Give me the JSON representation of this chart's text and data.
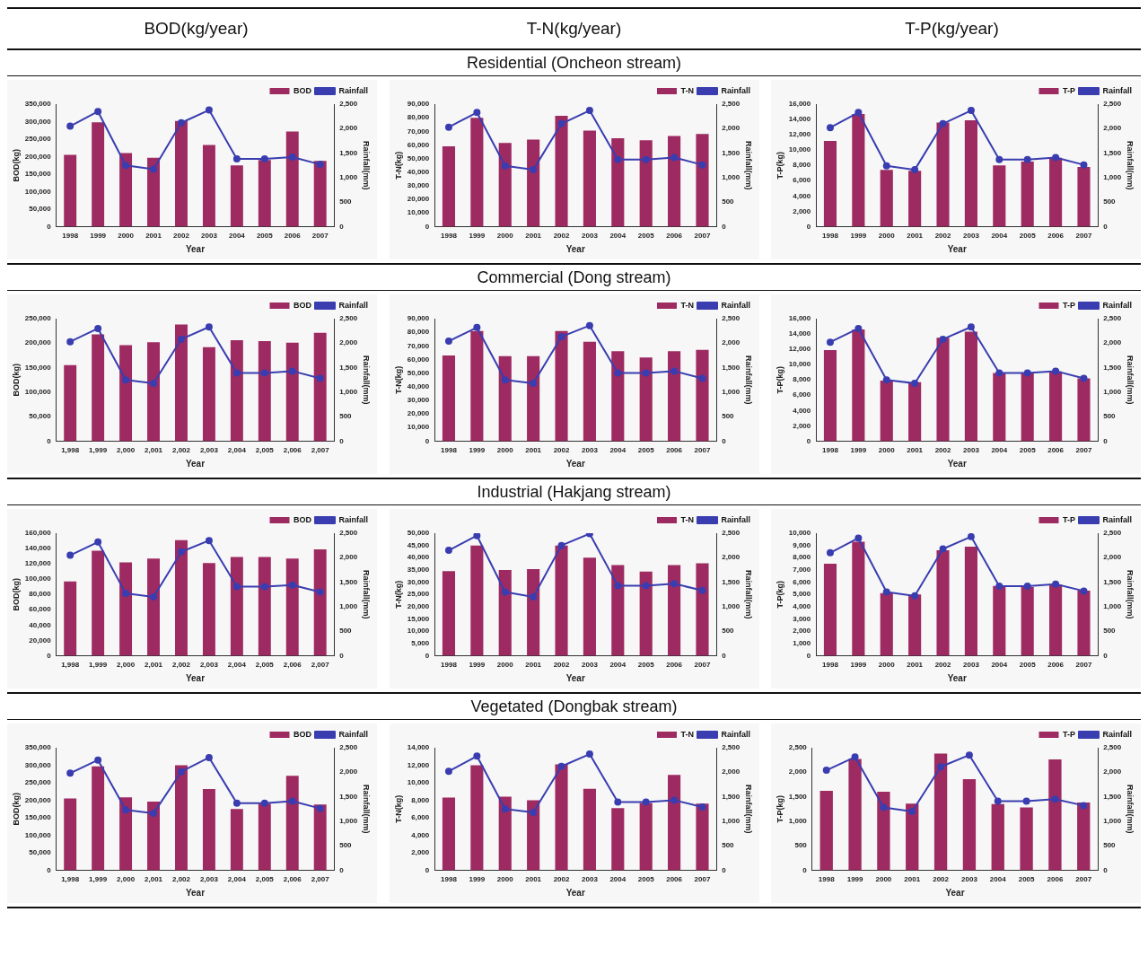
{
  "chart_data": [
    {
      "type": "bar",
      "title": "BOD(kg/year)",
      "categories": [
        "1998",
        "1999",
        "2000",
        "2001",
        "2002",
        "2003",
        "2004",
        "2005",
        "2006",
        "2007"
      ],
      "xlabel": "Year",
      "ylabel": "BOD(kg)",
      "y2label": "Rainfall(mm)",
      "ylim": [
        0,
        350000
      ],
      "yticks": [
        {
          "value": 0,
          "label": "0"
        },
        {
          "value": 50000,
          "label": "50,000"
        },
        {
          "value": 100000,
          "label": "100,000"
        },
        {
          "value": 150000,
          "label": "150,000"
        },
        {
          "value": 200000,
          "label": "200,000"
        },
        {
          "value": 250000,
          "label": "250,000"
        },
        {
          "value": 300000,
          "label": "300,000"
        },
        {
          "value": 350000,
          "label": "350,000"
        }
      ],
      "y2lim": [
        0,
        2500
      ],
      "y2ticks": [
        {
          "value": 0,
          "label": "0"
        },
        {
          "value": 500,
          "label": "500"
        },
        {
          "value": 1000,
          "label": "1,000"
        },
        {
          "value": 1500,
          "label": "1,500"
        },
        {
          "value": 2000,
          "label": "2,000"
        },
        {
          "value": 2500,
          "label": "2,500"
        }
      ],
      "legend": "top right",
      "marker": "circle",
      "series": [
        {
          "name": "BOD",
          "color": "#9e2a62",
          "values": [
            205000,
            298000,
            210000,
            197000,
            302000,
            233000,
            175000,
            190000,
            272000,
            188000
          ]
        },
        {
          "name": "Rainfall",
          "type": "line",
          "axis": "y2",
          "color": "#3a3db0",
          "values": [
            2050,
            2350,
            1250,
            1170,
            2120,
            2380,
            1380,
            1380,
            1420,
            1270
          ]
        }
      ]
    },
    {
      "type": "bar",
      "title": "T-N(kg/year)",
      "subtitle": "Residential (Oncheon stream)",
      "categories": [
        "1998",
        "1999",
        "2000",
        "2001",
        "2002",
        "2003",
        "2004",
        "2005",
        "2006",
        "2007"
      ],
      "xlabel": "Year",
      "ylabel": "T-N(kg)",
      "y2label": "Rainfall(mm)",
      "ylim": [
        0,
        90000
      ],
      "yticks": [
        {
          "value": 0,
          "label": "0"
        },
        {
          "value": 10000,
          "label": "10,000"
        },
        {
          "value": 20000,
          "label": "20,000"
        },
        {
          "value": 30000,
          "label": "30,000"
        },
        {
          "value": 40000,
          "label": "40,000"
        },
        {
          "value": 50000,
          "label": "50,000"
        },
        {
          "value": 60000,
          "label": "60,000"
        },
        {
          "value": 70000,
          "label": "70,000"
        },
        {
          "value": 80000,
          "label": "80,000"
        },
        {
          "value": 90000,
          "label": "90,000"
        }
      ],
      "y2lim": [
        0,
        2500
      ],
      "y2ticks": [
        {
          "value": 0,
          "label": "0"
        },
        {
          "value": 500,
          "label": "500"
        },
        {
          "value": 1000,
          "label": "1,000"
        },
        {
          "value": 1500,
          "label": "1,500"
        },
        {
          "value": 2000,
          "label": "2,000"
        },
        {
          "value": 2500,
          "label": "2,500"
        }
      ],
      "legend": "top right",
      "marker": "circle",
      "series": [
        {
          "name": "T-N",
          "color": "#9e2a62",
          "values": [
            59000,
            80000,
            61500,
            64000,
            81500,
            70500,
            65000,
            63500,
            66500,
            68000
          ]
        },
        {
          "name": "Rainfall",
          "type": "line",
          "axis": "y2",
          "color": "#3a3db0",
          "values": [
            2030,
            2330,
            1240,
            1160,
            2100,
            2370,
            1370,
            1370,
            1410,
            1260
          ]
        }
      ]
    },
    {
      "type": "bar",
      "title": "T-P(kg/year)",
      "categories": [
        "1998",
        "1999",
        "2000",
        "2001",
        "2002",
        "2003",
        "2004",
        "2005",
        "2006",
        "2007"
      ],
      "xlabel": "Year",
      "ylabel": "T-P(kg)",
      "y2label": "Rainfall(mm)",
      "ylim": [
        0,
        16000
      ],
      "yticks": [
        {
          "value": 0,
          "label": "0"
        },
        {
          "value": 2000,
          "label": "2,000"
        },
        {
          "value": 4000,
          "label": "4,000"
        },
        {
          "value": 6000,
          "label": "6,000"
        },
        {
          "value": 8000,
          "label": "8,000"
        },
        {
          "value": 10000,
          "label": "10,000"
        },
        {
          "value": 12000,
          "label": "12,000"
        },
        {
          "value": 14000,
          "label": "14,000"
        },
        {
          "value": 16000,
          "label": "16,000"
        }
      ],
      "y2lim": [
        0,
        2500
      ],
      "y2ticks": [
        {
          "value": 0,
          "label": "0"
        },
        {
          "value": 500,
          "label": "500"
        },
        {
          "value": 1000,
          "label": "1,000"
        },
        {
          "value": 1500,
          "label": "1,500"
        },
        {
          "value": 2000,
          "label": "2,000"
        },
        {
          "value": 2500,
          "label": "2,500"
        }
      ],
      "legend": "top right",
      "marker": "circle",
      "series": [
        {
          "name": "T-P",
          "color": "#9e2a62",
          "values": [
            11200,
            14700,
            7400,
            7300,
            13600,
            13900,
            8000,
            8500,
            9000,
            7800
          ]
        },
        {
          "name": "Rainfall",
          "type": "line",
          "axis": "y2",
          "color": "#3a3db0",
          "values": [
            2020,
            2330,
            1240,
            1160,
            2100,
            2370,
            1370,
            1370,
            1410,
            1260
          ]
        }
      ]
    },
    {
      "type": "bar",
      "categories": [
        "1,998",
        "1,999",
        "2,000",
        "2,001",
        "2,002",
        "2,003",
        "2,004",
        "2,005",
        "2,006",
        "2,007"
      ],
      "xlabel": "Year",
      "ylabel": "BOD(kg)",
      "y2label": "Rainfall(mm)",
      "ylim": [
        0,
        250000
      ],
      "yticks": [
        {
          "value": 0,
          "label": "0"
        },
        {
          "value": 50000,
          "label": "50,000"
        },
        {
          "value": 100000,
          "label": "100,000"
        },
        {
          "value": 150000,
          "label": "150,000"
        },
        {
          "value": 200000,
          "label": "200,000"
        },
        {
          "value": 250000,
          "label": "250,000"
        }
      ],
      "y2lim": [
        0,
        2500
      ],
      "y2ticks": [
        {
          "value": 0,
          "label": "0"
        },
        {
          "value": 500,
          "label": "500"
        },
        {
          "value": 1000,
          "label": "1,000"
        },
        {
          "value": 1500,
          "label": "1,500"
        },
        {
          "value": 2000,
          "label": "2,000"
        },
        {
          "value": 2500,
          "label": "2,500"
        }
      ],
      "legend": "top right",
      "marker": "circle",
      "series": [
        {
          "name": "BOD",
          "color": "#9e2a62",
          "values": [
            155000,
            218000,
            196000,
            202000,
            238000,
            192000,
            206000,
            204000,
            201000,
            221000
          ]
        },
        {
          "name": "Rainfall",
          "type": "line",
          "axis": "y2",
          "color": "#3a3db0",
          "values": [
            2030,
            2300,
            1250,
            1180,
            2080,
            2330,
            1390,
            1390,
            1430,
            1280
          ]
        }
      ]
    },
    {
      "type": "bar",
      "subtitle": "Commercial (Dong stream)",
      "categories": [
        "1998",
        "1999",
        "2000",
        "2001",
        "2002",
        "2003",
        "2004",
        "2005",
        "2006",
        "2007"
      ],
      "xlabel": "Year",
      "ylabel": "T-N(kg)",
      "y2label": "Rainfall(mm)",
      "ylim": [
        0,
        90000
      ],
      "yticks": [
        {
          "value": 0,
          "label": "0"
        },
        {
          "value": 10000,
          "label": "10,000"
        },
        {
          "value": 20000,
          "label": "20,000"
        },
        {
          "value": 30000,
          "label": "30,000"
        },
        {
          "value": 40000,
          "label": "40,000"
        },
        {
          "value": 50000,
          "label": "50,000"
        },
        {
          "value": 60000,
          "label": "60,000"
        },
        {
          "value": 70000,
          "label": "70,000"
        },
        {
          "value": 80000,
          "label": "80,000"
        },
        {
          "value": 90000,
          "label": "90,000"
        }
      ],
      "y2lim": [
        0,
        2500
      ],
      "y2ticks": [
        {
          "value": 0,
          "label": "0"
        },
        {
          "value": 500,
          "label": "500"
        },
        {
          "value": 1000,
          "label": "1,000"
        },
        {
          "value": 1500,
          "label": "1,500"
        },
        {
          "value": 2000,
          "label": "2,000"
        },
        {
          "value": 2500,
          "label": "2,500"
        }
      ],
      "legend": "top right",
      "marker": "circle",
      "series": [
        {
          "name": "T-N",
          "color": "#9e2a62",
          "values": [
            63000,
            81000,
            62500,
            62500,
            81000,
            73000,
            66000,
            61500,
            66000,
            67000
          ]
        },
        {
          "name": "Rainfall",
          "type": "line",
          "axis": "y2",
          "color": "#3a3db0",
          "values": [
            2040,
            2320,
            1250,
            1180,
            2130,
            2360,
            1390,
            1390,
            1430,
            1280
          ]
        }
      ]
    },
    {
      "type": "bar",
      "categories": [
        "1998",
        "1999",
        "2000",
        "2001",
        "2002",
        "2003",
        "2004",
        "2005",
        "2006",
        "2007"
      ],
      "xlabel": "Year",
      "ylabel": "T-P(kg)",
      "y2label": "Rainfall(mm)",
      "ylim": [
        0,
        16000
      ],
      "yticks": [
        {
          "value": 0,
          "label": "0"
        },
        {
          "value": 2000,
          "label": "2,000"
        },
        {
          "value": 4000,
          "label": "4,000"
        },
        {
          "value": 6000,
          "label": "6,000"
        },
        {
          "value": 8000,
          "label": "8,000"
        },
        {
          "value": 10000,
          "label": "10,000"
        },
        {
          "value": 12000,
          "label": "12,000"
        },
        {
          "value": 14000,
          "label": "14,000"
        },
        {
          "value": 16000,
          "label": "16,000"
        }
      ],
      "y2lim": [
        0,
        2500
      ],
      "y2ticks": [
        {
          "value": 0,
          "label": "0"
        },
        {
          "value": 500,
          "label": "500"
        },
        {
          "value": 1000,
          "label": "1,000"
        },
        {
          "value": 1500,
          "label": "1,500"
        },
        {
          "value": 2000,
          "label": "2,000"
        },
        {
          "value": 2500,
          "label": "2,500"
        }
      ],
      "legend": "top right",
      "marker": "circle",
      "series": [
        {
          "name": "T-P",
          "color": "#9e2a62",
          "values": [
            11900,
            14600,
            7900,
            7700,
            13500,
            14300,
            8900,
            8900,
            9100,
            8200
          ]
        },
        {
          "name": "Rainfall",
          "type": "line",
          "axis": "y2",
          "color": "#3a3db0",
          "values": [
            2020,
            2300,
            1250,
            1180,
            2080,
            2330,
            1390,
            1390,
            1430,
            1280
          ]
        }
      ]
    },
    {
      "type": "bar",
      "categories": [
        "1,998",
        "1,999",
        "2,000",
        "2,001",
        "2,002",
        "2,003",
        "2,004",
        "2,005",
        "2,006",
        "2,007"
      ],
      "xlabel": "Year",
      "ylabel": "BOD(kg)",
      "y2label": "Rainfall(mm)",
      "ylim": [
        0,
        160000
      ],
      "yticks": [
        {
          "value": 0,
          "label": "0"
        },
        {
          "value": 20000,
          "label": "20,000"
        },
        {
          "value": 40000,
          "label": "40,000"
        },
        {
          "value": 60000,
          "label": "60,000"
        },
        {
          "value": 80000,
          "label": "80,000"
        },
        {
          "value": 100000,
          "label": "100,000"
        },
        {
          "value": 120000,
          "label": "120,000"
        },
        {
          "value": 140000,
          "label": "140,000"
        },
        {
          "value": 160000,
          "label": "160,000"
        }
      ],
      "y2lim": [
        0,
        2500
      ],
      "y2ticks": [
        {
          "value": 0,
          "label": "0"
        },
        {
          "value": 500,
          "label": "500"
        },
        {
          "value": 1000,
          "label": "1,000"
        },
        {
          "value": 1500,
          "label": "1,500"
        },
        {
          "value": 2000,
          "label": "2,000"
        },
        {
          "value": 2500,
          "label": "2,500"
        }
      ],
      "legend": "top right",
      "marker": "circle",
      "series": [
        {
          "name": "BOD",
          "color": "#9e2a62",
          "values": [
            97000,
            137000,
            122000,
            127000,
            151000,
            121000,
            129000,
            129000,
            127000,
            139000
          ]
        },
        {
          "name": "Rainfall",
          "type": "line",
          "axis": "y2",
          "color": "#3a3db0",
          "values": [
            2050,
            2320,
            1270,
            1200,
            2120,
            2350,
            1410,
            1410,
            1440,
            1300
          ]
        }
      ]
    },
    {
      "type": "bar",
      "subtitle": "Industrial (Hakjang stream)",
      "categories": [
        "1998",
        "1999",
        "2000",
        "2001",
        "2002",
        "2003",
        "2004",
        "2005",
        "2006",
        "2007"
      ],
      "xlabel": "Year",
      "ylabel": "T-N(kg)",
      "y2label": "Rainfall(mm)",
      "ylim": [
        0,
        50000
      ],
      "yticks": [
        {
          "value": 0,
          "label": "0"
        },
        {
          "value": 5000,
          "label": "5,000"
        },
        {
          "value": 10000,
          "label": "10,000"
        },
        {
          "value": 15000,
          "label": "15,000"
        },
        {
          "value": 20000,
          "label": "20,000"
        },
        {
          "value": 25000,
          "label": "25,000"
        },
        {
          "value": 30000,
          "label": "30,000"
        },
        {
          "value": 35000,
          "label": "35,000"
        },
        {
          "value": 40000,
          "label": "40,000"
        },
        {
          "value": 45000,
          "label": "45,000"
        },
        {
          "value": 50000,
          "label": "50,000"
        }
      ],
      "y2lim": [
        0,
        2500
      ],
      "y2ticks": [
        {
          "value": 0,
          "label": "0"
        },
        {
          "value": 500,
          "label": "500"
        },
        {
          "value": 1000,
          "label": "1,000"
        },
        {
          "value": 1500,
          "label": "1,500"
        },
        {
          "value": 2000,
          "label": "2,000"
        },
        {
          "value": 2500,
          "label": "2,500"
        }
      ],
      "legend": "top right",
      "marker": "circle",
      "series": [
        {
          "name": "T-N",
          "color": "#9e2a62",
          "values": [
            34500,
            45000,
            35000,
            35300,
            45000,
            40000,
            37000,
            34300,
            37000,
            37700
          ]
        },
        {
          "name": "Rainfall",
          "type": "line",
          "axis": "y2",
          "color": "#3a3db0",
          "values": [
            2150,
            2450,
            1300,
            1200,
            2250,
            2490,
            1430,
            1430,
            1470,
            1330
          ]
        }
      ]
    },
    {
      "type": "bar",
      "categories": [
        "1998",
        "1999",
        "2000",
        "2001",
        "2002",
        "2003",
        "2004",
        "2005",
        "2006",
        "2007"
      ],
      "xlabel": "Year",
      "ylabel": "T-P(kg)",
      "y2label": "Rainfall(mm)",
      "ylim": [
        0,
        10000
      ],
      "yticks": [
        {
          "value": 0,
          "label": "0"
        },
        {
          "value": 1000,
          "label": "1,000"
        },
        {
          "value": 2000,
          "label": "2,000"
        },
        {
          "value": 3000,
          "label": "3,000"
        },
        {
          "value": 4000,
          "label": "4,000"
        },
        {
          "value": 5000,
          "label": "5,000"
        },
        {
          "value": 6000,
          "label": "6,000"
        },
        {
          "value": 7000,
          "label": "7,000"
        },
        {
          "value": 8000,
          "label": "8,000"
        },
        {
          "value": 9000,
          "label": "9,000"
        },
        {
          "value": 10000,
          "label": "10,000"
        }
      ],
      "y2lim": [
        0,
        2500
      ],
      "y2ticks": [
        {
          "value": 0,
          "label": "0"
        },
        {
          "value": 500,
          "label": "500"
        },
        {
          "value": 1000,
          "label": "1,000"
        },
        {
          "value": 1500,
          "label": "1,500"
        },
        {
          "value": 2000,
          "label": "2,000"
        },
        {
          "value": 2500,
          "label": "2,500"
        }
      ],
      "legend": "top right",
      "marker": "circle",
      "series": [
        {
          "name": "T-P",
          "color": "#9e2a62",
          "values": [
            7500,
            9300,
            5100,
            5000,
            8600,
            8900,
            5700,
            5600,
            5800,
            5300
          ]
        },
        {
          "name": "Rainfall",
          "type": "line",
          "axis": "y2",
          "color": "#3a3db0",
          "values": [
            2100,
            2400,
            1300,
            1220,
            2180,
            2430,
            1420,
            1420,
            1460,
            1320
          ]
        }
      ]
    },
    {
      "type": "bar",
      "categories": [
        "1,998",
        "1,999",
        "2,000",
        "2,001",
        "2,002",
        "2,003",
        "2,004",
        "2,005",
        "2,006",
        "2,007"
      ],
      "xlabel": "Year",
      "ylabel": "BOD(kg)",
      "y2label": "Rainfall(mm)",
      "ylim": [
        0,
        350000
      ],
      "yticks": [
        {
          "value": 0,
          "label": "0"
        },
        {
          "value": 50000,
          "label": "50,000"
        },
        {
          "value": 100000,
          "label": "100,000"
        },
        {
          "value": 150000,
          "label": "150,000"
        },
        {
          "value": 200000,
          "label": "200,000"
        },
        {
          "value": 250000,
          "label": "250,000"
        },
        {
          "value": 300000,
          "label": "300,000"
        },
        {
          "value": 350000,
          "label": "350,000"
        }
      ],
      "y2lim": [
        0,
        2500
      ],
      "y2ticks": [
        {
          "value": 0,
          "label": "0"
        },
        {
          "value": 500,
          "label": "500"
        },
        {
          "value": 1000,
          "label": "1,000"
        },
        {
          "value": 1500,
          "label": "1,500"
        },
        {
          "value": 2000,
          "label": "2,000"
        },
        {
          "value": 2500,
          "label": "2,500"
        }
      ],
      "legend": "top right",
      "marker": "circle",
      "series": [
        {
          "name": "BOD",
          "color": "#9e2a62",
          "values": [
            205000,
            297000,
            208000,
            196000,
            300000,
            232000,
            175000,
            190000,
            270000,
            188000
          ]
        },
        {
          "name": "Rainfall",
          "type": "line",
          "axis": "y2",
          "color": "#3a3db0",
          "values": [
            1980,
            2250,
            1230,
            1160,
            2010,
            2300,
            1370,
            1370,
            1410,
            1260
          ]
        }
      ]
    },
    {
      "type": "bar",
      "subtitle": "Vegetated (Dongbak stream)",
      "categories": [
        "1998",
        "1999",
        "2000",
        "2001",
        "2002",
        "2003",
        "2004",
        "2005",
        "2006",
        "2007"
      ],
      "xlabel": "Year",
      "ylabel": "T-N(kg)",
      "y2label": "Rainfall(mm)",
      "ylim": [
        0,
        14000
      ],
      "yticks": [
        {
          "value": 0,
          "label": "0"
        },
        {
          "value": 2000,
          "label": "2,000"
        },
        {
          "value": 4000,
          "label": "4,000"
        },
        {
          "value": 6000,
          "label": "6,000"
        },
        {
          "value": 8000,
          "label": "8,000"
        },
        {
          "value": 10000,
          "label": "10,000"
        },
        {
          "value": 12000,
          "label": "12,000"
        },
        {
          "value": 14000,
          "label": "14,000"
        }
      ],
      "y2lim": [
        0,
        2500
      ],
      "y2ticks": [
        {
          "value": 0,
          "label": "0"
        },
        {
          "value": 500,
          "label": "500"
        },
        {
          "value": 1000,
          "label": "1,000"
        },
        {
          "value": 1500,
          "label": "1,500"
        },
        {
          "value": 2000,
          "label": "2,000"
        },
        {
          "value": 2500,
          "label": "2,500"
        }
      ],
      "legend": "top right",
      "marker": "circle",
      "series": [
        {
          "name": "T-N",
          "color": "#9e2a62",
          "values": [
            8300,
            12000,
            8400,
            8000,
            12100,
            9300,
            7100,
            7700,
            10900,
            7600
          ]
        },
        {
          "name": "Rainfall",
          "type": "line",
          "axis": "y2",
          "color": "#3a3db0",
          "values": [
            2020,
            2330,
            1250,
            1180,
            2120,
            2370,
            1390,
            1390,
            1430,
            1290
          ]
        }
      ]
    },
    {
      "type": "bar",
      "categories": [
        "1998",
        "1999",
        "2000",
        "2001",
        "2002",
        "2003",
        "2004",
        "2005",
        "2006",
        "2007"
      ],
      "xlabel": "Year",
      "ylabel": "T-P(kg)",
      "y2label": "Rainfall(mm)",
      "ylim": [
        0,
        2500
      ],
      "yticks": [
        {
          "value": 0,
          "label": "0"
        },
        {
          "value": 500,
          "label": "500"
        },
        {
          "value": 1000,
          "label": "1,000"
        },
        {
          "value": 1500,
          "label": "1,500"
        },
        {
          "value": 2000,
          "label": "2,000"
        },
        {
          "value": 2500,
          "label": "2,500"
        }
      ],
      "y2lim": [
        0,
        2500
      ],
      "y2ticks": [
        {
          "value": 0,
          "label": "0"
        },
        {
          "value": 500,
          "label": "500"
        },
        {
          "value": 1000,
          "label": "1,000"
        },
        {
          "value": 1500,
          "label": "1,500"
        },
        {
          "value": 2000,
          "label": "2,000"
        },
        {
          "value": 2500,
          "label": "2,500"
        }
      ],
      "legend": "top right",
      "marker": "circle",
      "series": [
        {
          "name": "T-P",
          "color": "#9e2a62",
          "values": [
            1620,
            2270,
            1600,
            1360,
            2380,
            1860,
            1350,
            1280,
            2260,
            1380
          ]
        },
        {
          "name": "Rainfall",
          "type": "line",
          "axis": "y2",
          "color": "#3a3db0",
          "values": [
            2040,
            2310,
            1280,
            1200,
            2110,
            2350,
            1410,
            1410,
            1450,
            1320
          ]
        }
      ]
    }
  ]
}
